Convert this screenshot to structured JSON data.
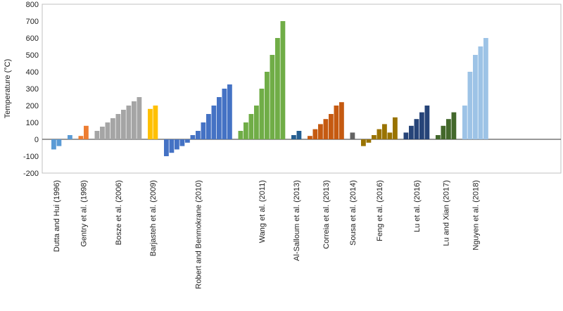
{
  "chart_data": {
    "type": "bar",
    "title": "",
    "xlabel": "",
    "ylabel": "Temperature (°C)",
    "ylim": [
      -200,
      800
    ],
    "yticks": [
      -200,
      -100,
      0,
      100,
      200,
      300,
      400,
      500,
      600,
      700,
      800
    ],
    "grid": false,
    "legend": "none",
    "groups": [
      {
        "name": "Dutta and Hui (1996)",
        "color": "#5b9bd5",
        "values": [
          -60,
          -40
        ]
      },
      {
        "name": "",
        "color": "#5b9bd5",
        "values": [
          25
        ]
      },
      {
        "name": "Gentry et al. (1998)",
        "color": "#ed7d31",
        "values": [
          20,
          80
        ]
      },
      {
        "name": "Bosze et al. (2006)",
        "color": "#a5a5a5",
        "values": [
          50,
          75,
          100,
          125,
          150,
          175,
          200,
          225,
          250
        ]
      },
      {
        "name": "Barjasteh et al. (2009)",
        "color": "#ffc000",
        "values": [
          180,
          200
        ]
      },
      {
        "name": "Robert and Benmokrane (2010)",
        "color": "#4472c4",
        "values": [
          -100,
          -80,
          -60,
          -40,
          -20,
          25,
          50,
          100,
          150,
          200,
          250,
          300,
          325
        ]
      },
      {
        "name": "Wang et al. (2011)",
        "color": "#70ad47",
        "values": [
          50,
          100,
          150,
          200,
          300,
          400,
          500,
          600,
          700
        ]
      },
      {
        "name": "Al-Salloum et al. (2013)",
        "color": "#255e91",
        "values": [
          25,
          50
        ]
      },
      {
        "name": "Correia et al. (2013)",
        "color": "#c55a11",
        "values": [
          20,
          60,
          90,
          120,
          150,
          200,
          220
        ]
      },
      {
        "name": "Sousa et al. (2014)",
        "color": "#636363",
        "values": [
          40
        ]
      },
      {
        "name": "Feng et al. (2016)",
        "color": "#997300",
        "values": [
          -40,
          -20,
          25,
          60,
          90,
          40,
          130
        ]
      },
      {
        "name": "Lu et al. (2016)",
        "color": "#264478",
        "values": [
          40,
          80,
          120,
          160,
          200
        ]
      },
      {
        "name": "Lu and Xian (2017)",
        "color": "#43682b",
        "values": [
          25,
          80,
          120,
          160
        ]
      },
      {
        "name": "Nguyen et al. (2018)",
        "color": "#9dc3e6",
        "values": [
          200,
          400,
          500,
          550,
          600
        ]
      }
    ]
  }
}
